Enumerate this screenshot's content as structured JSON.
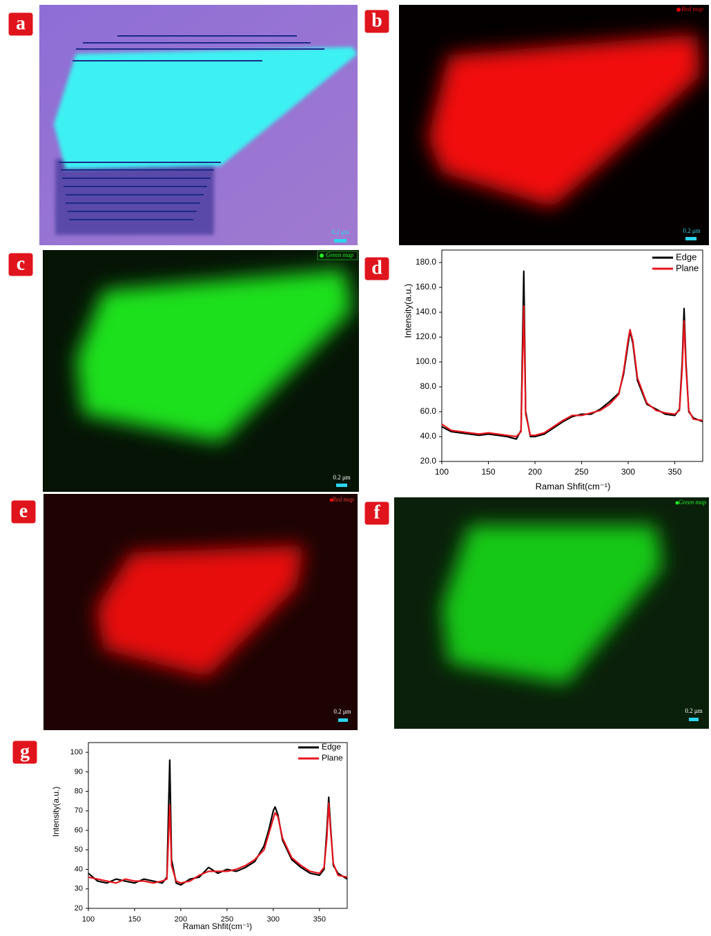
{
  "panels": [
    {
      "label": "a",
      "scale": "0.2 μm"
    },
    {
      "label": "b",
      "legend": "Red map",
      "scale": "0.2 μm"
    },
    {
      "label": "c",
      "legend": "Green map",
      "scale": "0.2 μm"
    },
    {
      "label": "d"
    },
    {
      "label": "e",
      "legend": "Red map",
      "scale": "0.2 μm"
    },
    {
      "label": "f",
      "legend": "Green map",
      "scale": "0.2 μm"
    },
    {
      "label": "g"
    }
  ],
  "chart_data": [
    {
      "type": "line",
      "xlabel": "Raman Shfit(cm⁻¹)",
      "ylabel": "Intensity(a.u.)",
      "x": [
        100,
        110,
        120,
        130,
        140,
        150,
        160,
        170,
        180,
        185,
        188,
        190,
        195,
        200,
        210,
        220,
        230,
        240,
        250,
        260,
        270,
        280,
        290,
        295,
        300,
        302,
        305,
        310,
        320,
        330,
        340,
        350,
        355,
        358,
        360,
        362,
        365,
        370,
        380
      ],
      "series": [
        {
          "name": "Edge",
          "color": "#000000",
          "values": [
            48,
            44,
            43,
            42,
            41,
            42,
            41,
            40,
            38,
            45,
            173,
            60,
            40,
            40,
            42,
            47,
            52,
            56,
            58,
            58,
            62,
            68,
            75,
            90,
            115,
            125,
            115,
            85,
            66,
            62,
            58,
            57,
            62,
            100,
            143,
            100,
            60,
            55,
            52
          ]
        },
        {
          "name": "Plane",
          "color": "#e8141c",
          "values": [
            50,
            45,
            44,
            43,
            42,
            43,
            42,
            41,
            40,
            44,
            145,
            58,
            41,
            41,
            43,
            48,
            53,
            57,
            57,
            59,
            61,
            66,
            74,
            92,
            118,
            126,
            117,
            87,
            67,
            61,
            59,
            58,
            61,
            95,
            133,
            96,
            61,
            54,
            53
          ]
        }
      ],
      "xlim": [
        100,
        380
      ],
      "xticks": [
        100,
        150,
        200,
        250,
        300,
        350
      ],
      "ylim": [
        20,
        190
      ],
      "yticks": [
        {
          "value": 20,
          "label": "20.0"
        },
        {
          "value": 40,
          "label": "40.0"
        },
        {
          "value": 60,
          "label": "60.0"
        },
        {
          "value": 80,
          "label": "80.0"
        },
        {
          "value": 100,
          "label": "100.0"
        },
        {
          "value": 120,
          "label": "120.0"
        },
        {
          "value": 140,
          "label": "140.0"
        },
        {
          "value": 160,
          "label": "160.0"
        },
        {
          "value": 180,
          "label": "180.0"
        }
      ]
    },
    {
      "type": "line",
      "xlabel": "Raman Shfit(cm⁻¹)",
      "ylabel": "Intensity(a.u.)",
      "x": [
        100,
        110,
        120,
        130,
        140,
        150,
        160,
        170,
        180,
        185,
        188,
        190,
        195,
        200,
        210,
        220,
        230,
        240,
        250,
        260,
        270,
        280,
        290,
        295,
        300,
        302,
        305,
        310,
        320,
        330,
        340,
        350,
        355,
        358,
        360,
        362,
        365,
        370,
        380
      ],
      "series": [
        {
          "name": "Edge",
          "color": "#000000",
          "values": [
            38,
            34,
            33,
            35,
            34,
            33,
            35,
            34,
            33,
            36,
            96,
            45,
            33,
            32,
            35,
            36,
            41,
            38,
            40,
            39,
            41,
            44,
            52,
            60,
            70,
            72,
            68,
            55,
            45,
            41,
            38,
            37,
            40,
            60,
            77,
            62,
            42,
            38,
            35
          ]
        },
        {
          "name": "Plane",
          "color": "#e8141c",
          "values": [
            36,
            35,
            34,
            33,
            35,
            34,
            34,
            33,
            34,
            35,
            73,
            42,
            34,
            33,
            34,
            37,
            39,
            39,
            39,
            40,
            42,
            45,
            50,
            58,
            66,
            69,
            67,
            56,
            46,
            42,
            39,
            38,
            41,
            56,
            74,
            60,
            43,
            37,
            36
          ]
        }
      ],
      "xlim": [
        100,
        380
      ],
      "xticks": [
        100,
        150,
        200,
        250,
        300,
        350
      ],
      "ylim": [
        20,
        105
      ],
      "yticks": [
        20,
        30,
        40,
        50,
        60,
        70,
        80,
        90,
        100
      ]
    }
  ]
}
